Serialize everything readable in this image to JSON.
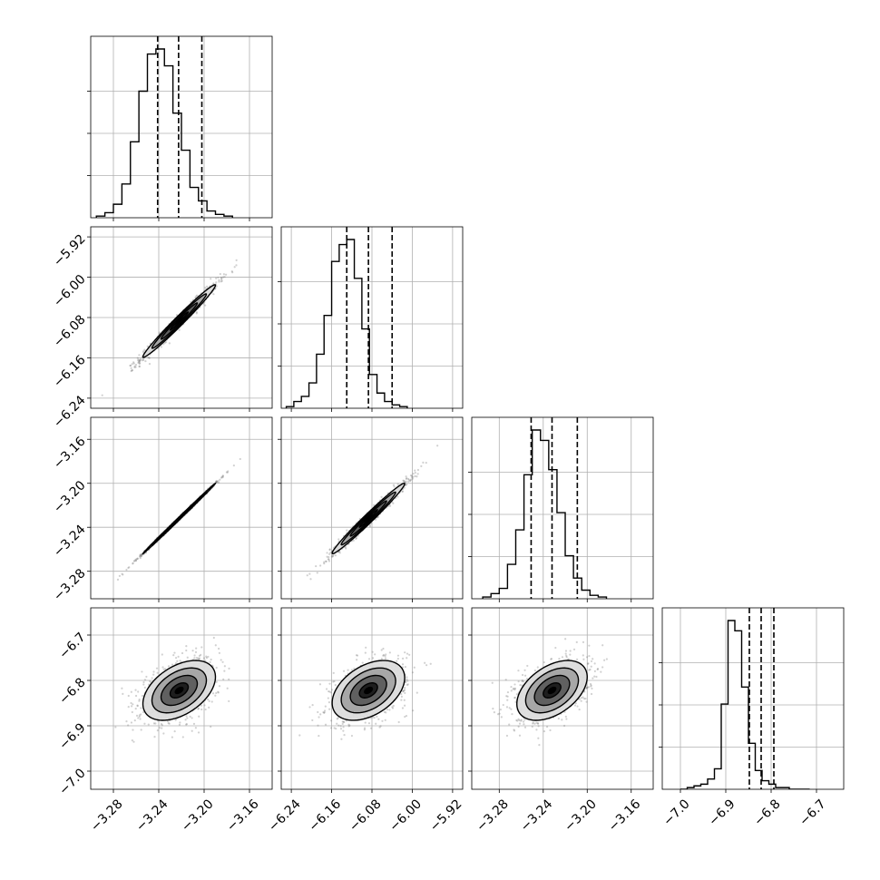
{
  "chart_data": {
    "type": "corner",
    "n_params": 4,
    "grid": true,
    "params": [
      {
        "ticks": [
          -3.28,
          -3.24,
          -3.2,
          -3.16
        ],
        "tick_labels": [
          "−3.28",
          "−3.24",
          "−3.20",
          "−3.16"
        ],
        "range": [
          -3.3,
          -3.14
        ],
        "quantiles": [
          -3.241,
          -3.2225,
          -3.202
        ],
        "hist": {
          "bin_start": -3.295,
          "bin_width": 0.0075,
          "counts": [
            0.01,
            0.03,
            0.08,
            0.2,
            0.45,
            0.75,
            0.97,
            1.0,
            0.9,
            0.62,
            0.4,
            0.18,
            0.1,
            0.04,
            0.02,
            0.01
          ]
        }
      },
      {
        "ticks": [
          -6.24,
          -6.16,
          -6.08,
          -6.0,
          -5.92
        ],
        "tick_labels": [
          "−6.24",
          "−6.16",
          "−6.08",
          "−6.00",
          "−5.92"
        ],
        "range": [
          -6.26,
          -5.9
        ],
        "quantiles": [
          -6.13,
          -6.087,
          -6.04
        ],
        "hist": {
          "bin_start": -6.25,
          "bin_width": 0.015,
          "counts": [
            0.01,
            0.04,
            0.07,
            0.15,
            0.32,
            0.55,
            0.87,
            0.97,
            1.0,
            0.77,
            0.47,
            0.2,
            0.09,
            0.04,
            0.02,
            0.01
          ]
        }
      },
      {
        "ticks": [
          -3.28,
          -3.24,
          -3.2,
          -3.16
        ],
        "tick_labels": [
          "−3.28",
          "−3.24",
          "−3.20",
          "−3.16"
        ],
        "range": [
          -3.305,
          -3.14
        ],
        "quantiles": [
          -3.251,
          -3.232,
          -3.209
        ],
        "hist": {
          "bin_start": -3.295,
          "bin_width": 0.0075,
          "counts": [
            0.01,
            0.03,
            0.06,
            0.2,
            0.4,
            0.72,
            0.98,
            0.92,
            0.75,
            0.5,
            0.25,
            0.12,
            0.05,
            0.02,
            0.01
          ]
        }
      },
      {
        "ticks": [
          -7.0,
          -6.9,
          -6.8,
          -6.7
        ],
        "tick_labels": [
          "−7.0",
          "−6.9",
          "−6.8",
          "−6.7"
        ],
        "range": [
          -7.04,
          -6.64
        ],
        "quantiles": [
          -6.848,
          -6.822,
          -6.794
        ],
        "hist": {
          "bin_start": -7.0,
          "bin_width": 0.015,
          "counts": [
            0.0,
            0.01,
            0.02,
            0.03,
            0.06,
            0.12,
            0.5,
            0.99,
            0.93,
            0.6,
            0.27,
            0.11,
            0.05,
            0.03,
            0.01,
            0.01,
            0.0,
            0.0,
            0.0
          ]
        }
      }
    ],
    "pairs": [
      {
        "x": 0,
        "y": 1,
        "center": [
          -3.222,
          -6.087
        ],
        "sd": [
          0.016,
          0.036
        ],
        "rho": 0.985
      },
      {
        "x": 0,
        "y": 2,
        "center": [
          -3.222,
          -3.232
        ],
        "sd": [
          0.016,
          0.016
        ],
        "rho": 0.999
      },
      {
        "x": 1,
        "y": 2,
        "center": [
          -6.087,
          -3.232
        ],
        "sd": [
          0.036,
          0.016
        ],
        "rho": 0.985
      },
      {
        "x": 0,
        "y": 3,
        "center": [
          -3.222,
          -6.822
        ],
        "sd": [
          0.016,
          0.033
        ],
        "rho": 0.45
      },
      {
        "x": 1,
        "y": 3,
        "center": [
          -6.087,
          -6.822
        ],
        "sd": [
          0.036,
          0.033
        ],
        "rho": 0.42
      },
      {
        "x": 2,
        "y": 3,
        "center": [
          -3.232,
          -6.822
        ],
        "sd": [
          0.016,
          0.033
        ],
        "rho": 0.45
      }
    ],
    "scatter_points_per_panel": 900,
    "contour_sigma_levels": [
      0.5,
      1.0,
      1.5,
      2.0
    ],
    "colors": {
      "line": "#000000",
      "grid": "#b0b0b0",
      "points": "#7a7a7a",
      "fill_levels": [
        "#1a1a1a",
        "#5c5c5c",
        "#a3a3a3",
        "#dcdcdc"
      ]
    }
  }
}
